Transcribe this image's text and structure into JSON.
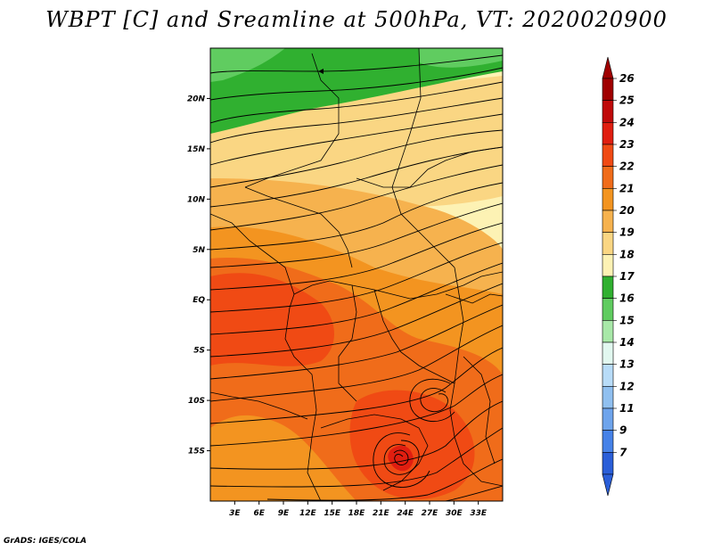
{
  "title": "WBPT [C] and Sreamline at 500hPa, VT: 2020020900",
  "credit": "GrADS: IGES/COLA",
  "map": {
    "lon_range": [
      0,
      36
    ],
    "lat_range": [
      -20,
      25
    ],
    "lon_ticks": [
      {
        "value": 3,
        "label": "3E"
      },
      {
        "value": 6,
        "label": "6E"
      },
      {
        "value": 9,
        "label": "9E"
      },
      {
        "value": 12,
        "label": "12E"
      },
      {
        "value": 15,
        "label": "15E"
      },
      {
        "value": 18,
        "label": "18E"
      },
      {
        "value": 21,
        "label": "21E"
      },
      {
        "value": 24,
        "label": "24E"
      },
      {
        "value": 27,
        "label": "27E"
      },
      {
        "value": 30,
        "label": "30E"
      },
      {
        "value": 33,
        "label": "33E"
      }
    ],
    "lat_ticks": [
      {
        "value": 20,
        "label": "20N"
      },
      {
        "value": 15,
        "label": "15N"
      },
      {
        "value": 10,
        "label": "10N"
      },
      {
        "value": 5,
        "label": "5N"
      },
      {
        "value": 0,
        "label": "EQ"
      },
      {
        "value": -5,
        "label": "5S"
      },
      {
        "value": -10,
        "label": "10S"
      },
      {
        "value": -15,
        "label": "15S"
      }
    ]
  },
  "colorbar": {
    "levels": [
      {
        "label": "26",
        "color": "#a00000"
      },
      {
        "label": "25",
        "color": "#c00a0a"
      },
      {
        "label": "24",
        "color": "#e01e10"
      },
      {
        "label": "23",
        "color": "#f04a14"
      },
      {
        "label": "22",
        "color": "#f06c1a"
      },
      {
        "label": "21",
        "color": "#f39420"
      },
      {
        "label": "20",
        "color": "#f6b24e"
      },
      {
        "label": "19",
        "color": "#fad683"
      },
      {
        "label": "18",
        "color": "#fdf2b4"
      },
      {
        "label": "17",
        "color": "#30b030"
      },
      {
        "label": "16",
        "color": "#60cc60"
      },
      {
        "label": "15",
        "color": "#a8e8a8"
      },
      {
        "label": "14",
        "color": "#e2f8f0"
      },
      {
        "label": "13",
        "color": "#b8dcf8"
      },
      {
        "label": "12",
        "color": "#90c0f0"
      },
      {
        "label": "11",
        "color": "#6ea4ec"
      },
      {
        "label": "9",
        "color": "#4682e8"
      },
      {
        "label": "7",
        "color": "#2a5ed8"
      }
    ],
    "top_arrow_color": "#a00000",
    "bottom_arrow_color": "#2a5ed8"
  },
  "fields": {
    "regions": [
      {
        "label": "18",
        "color": "#fdf2b4"
      },
      {
        "label": "19",
        "color": "#fad683"
      },
      {
        "label": "20",
        "color": "#f6b24e"
      },
      {
        "label": "21",
        "color": "#f39420"
      },
      {
        "label": "22",
        "color": "#f06c1a"
      },
      {
        "label": "23",
        "color": "#f04a14"
      },
      {
        "label": "17",
        "color": "#30b030"
      },
      {
        "label": "16",
        "color": "#60cc60"
      }
    ]
  }
}
